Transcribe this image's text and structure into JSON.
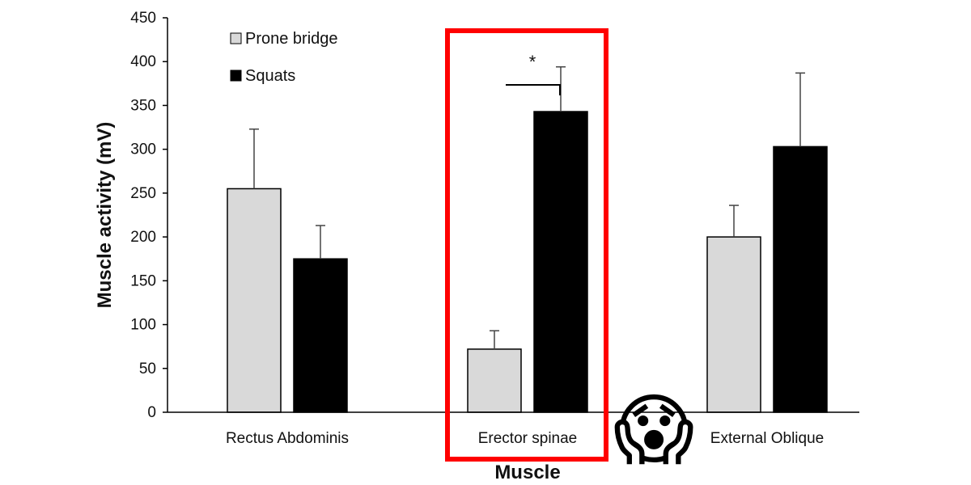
{
  "chart_data": {
    "type": "bar",
    "categories": [
      "Rectus Abdominis",
      "Erector spinae",
      "External Oblique"
    ],
    "series": [
      {
        "name": "Prone bridge",
        "values": [
          255,
          72,
          200
        ],
        "errors": [
          68,
          21,
          36
        ],
        "color": "#d9d9d9"
      },
      {
        "name": "Squats",
        "values": [
          175,
          343,
          303
        ],
        "errors": [
          38,
          51,
          84
        ],
        "color": "#000000"
      }
    ],
    "xlabel": "Muscle",
    "ylabel": "Muscle activity (mV)",
    "ylim": [
      0,
      450
    ],
    "yticks": [
      0,
      50,
      100,
      150,
      200,
      250,
      300,
      350,
      400,
      450
    ],
    "grid": false,
    "legend_position": "top-left",
    "significance": {
      "category": "Erector spinae",
      "label": "*"
    },
    "highlight": {
      "category": "Erector spinae",
      "color": "#ff0000"
    },
    "emoji": {
      "icon": "screaming-face-emoji",
      "glyph": "😱"
    }
  }
}
